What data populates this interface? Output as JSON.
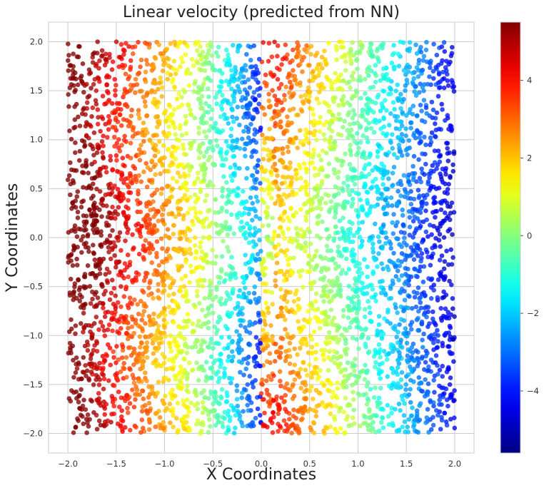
{
  "chart_data": {
    "type": "scatter",
    "title": "Linear velocity (predicted from NN)",
    "xlabel": "X Coordinates",
    "ylabel": "Y Coordinates",
    "xlim": [
      -2.2,
      2.2
    ],
    "ylim": [
      -2.2,
      2.2
    ],
    "x_ticks": [
      -2.0,
      -1.5,
      -1.0,
      -0.5,
      0.0,
      0.5,
      1.0,
      1.5,
      2.0
    ],
    "y_ticks": [
      -2.0,
      -1.5,
      -1.0,
      -0.5,
      0.0,
      0.5,
      1.0,
      1.5,
      2.0
    ],
    "x_tick_labels": [
      "−2.0",
      "−1.5",
      "−1.0",
      "−0.5",
      "0.0",
      "0.5",
      "1.0",
      "1.5",
      "2.0"
    ],
    "y_tick_labels": [
      "−2.0",
      "−1.5",
      "−1.0",
      "−0.5",
      "0.0",
      "0.5",
      "1.0",
      "1.5",
      "2.0"
    ],
    "grid": true,
    "colormap": "jet",
    "colorbar": {
      "range": [
        -5.6,
        5.5
      ],
      "ticks": [
        -4,
        -2,
        0,
        2,
        4
      ],
      "tick_labels": [
        "−4",
        "−2",
        "0",
        "2",
        "4"
      ]
    },
    "data_domain": {
      "x": [
        -2.0,
        2.0
      ],
      "y": [
        -2.0,
        2.0
      ]
    },
    "approx_point_count": 5000,
    "value_field_samples": [
      {
        "x": -1.9,
        "y": 0.3,
        "value": 5.0
      },
      {
        "x": -1.9,
        "y": -0.1,
        "value": 5.0
      },
      {
        "x": -1.9,
        "y": 1.9,
        "value": 3.5
      },
      {
        "x": -1.2,
        "y": 0.0,
        "value": 2.8
      },
      {
        "x": -0.6,
        "y": 0.0,
        "value": 1.0
      },
      {
        "x": -0.3,
        "y": 1.8,
        "value": -2.5
      },
      {
        "x": -0.05,
        "y": 0.0,
        "value": -1.0
      },
      {
        "x": 0.1,
        "y": 1.8,
        "value": 3.5
      },
      {
        "x": 0.1,
        "y": -1.5,
        "value": 3.5
      },
      {
        "x": 0.6,
        "y": 0.0,
        "value": 0.0
      },
      {
        "x": 1.2,
        "y": 0.0,
        "value": -2.5
      },
      {
        "x": 1.9,
        "y": 0.0,
        "value": -5.0
      },
      {
        "x": 1.9,
        "y": 1.8,
        "value": -3.0
      }
    ]
  },
  "colors": {
    "grid": "#cccccc",
    "spine": "#cccccc",
    "text": "#222222",
    "colormap_stops": [
      "#00007f",
      "#0000ff",
      "#007fff",
      "#00ffff",
      "#7fff7f",
      "#ffff00",
      "#ff7f00",
      "#ff0000",
      "#7f0000"
    ]
  }
}
